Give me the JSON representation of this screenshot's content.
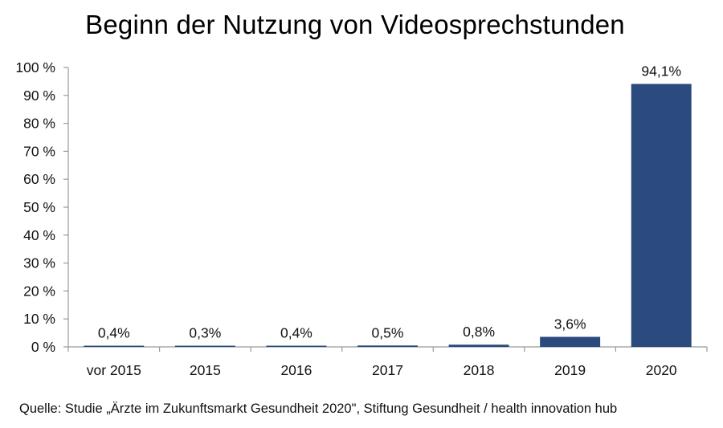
{
  "chart_data": {
    "type": "bar",
    "title": "Beginn der Nutzung von Videosprechstunden",
    "categories": [
      "vor 2015",
      "2015",
      "2016",
      "2017",
      "2018",
      "2019",
      "2020"
    ],
    "values": [
      0.4,
      0.3,
      0.4,
      0.5,
      0.8,
      3.6,
      94.1
    ],
    "value_labels": [
      "0,4%",
      "0,3%",
      "0,4%",
      "0,5%",
      "0,8%",
      "3,6%",
      "94,1%"
    ],
    "yticks": [
      0,
      10,
      20,
      30,
      40,
      50,
      60,
      70,
      80,
      90,
      100
    ],
    "ytick_labels": [
      "0 %",
      "10 %",
      "20 %",
      "30 %",
      "40 %",
      "50 %",
      "60 %",
      "70 %",
      "80 %",
      "90 %",
      "100 %"
    ],
    "ylim": [
      0,
      100
    ],
    "xlabel": "",
    "ylabel": "",
    "grid": false,
    "bar_color": "#2b4a7e"
  },
  "source": "Quelle: Studie „Ärzte im Zukunftsmarkt Gesundheit 2020\", Stiftung Gesundheit / health innovation hub"
}
